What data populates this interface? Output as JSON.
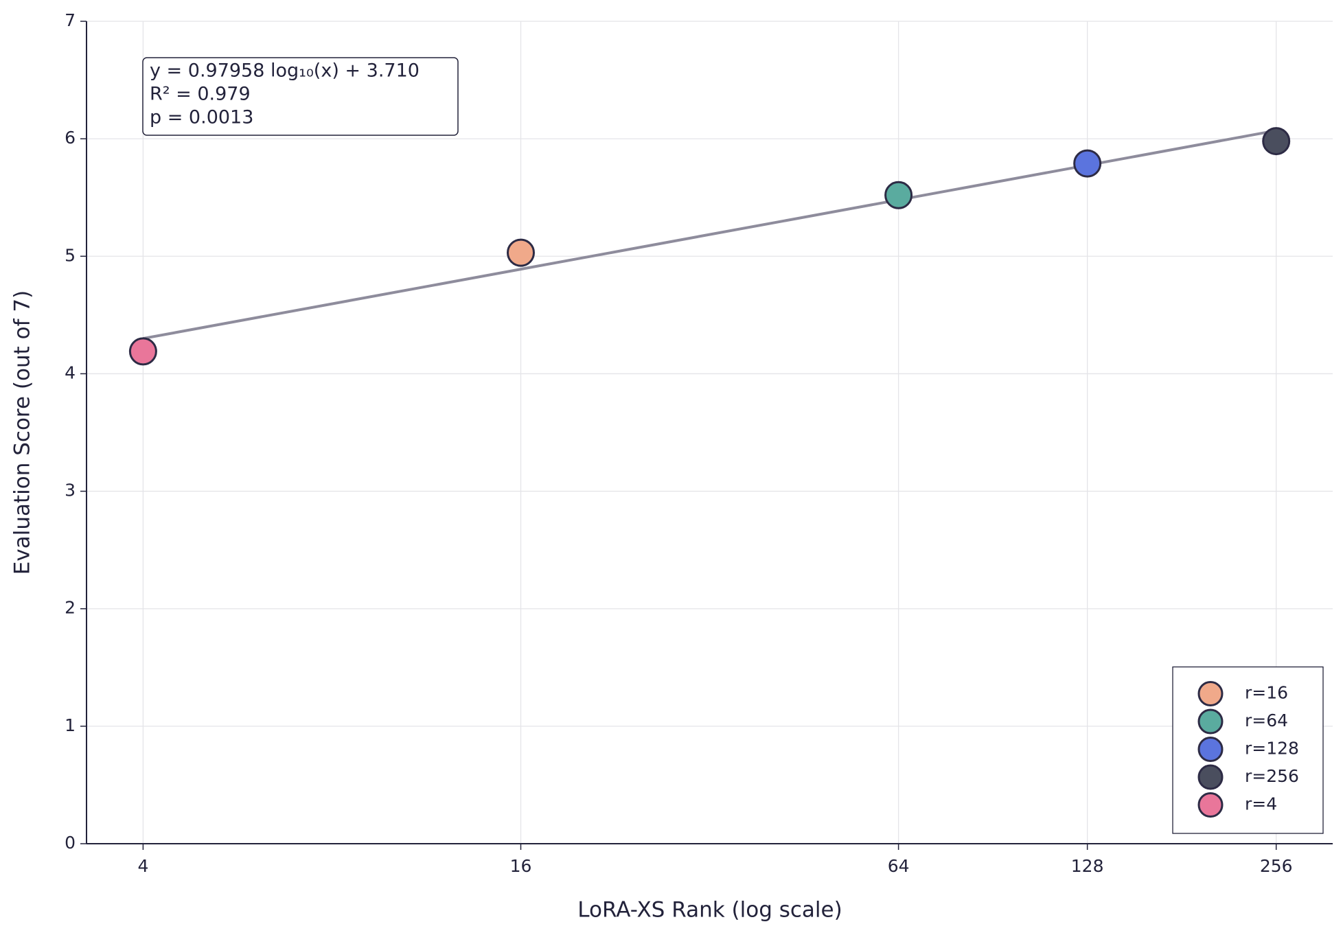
{
  "chart_data": {
    "type": "scatter",
    "xlabel": "LoRA-XS Rank (log scale)",
    "ylabel": "Evaluation Score (out of 7)",
    "x_log": true,
    "xlim": [
      3.25,
      315
    ],
    "xticks": [
      4,
      16,
      64,
      128,
      256
    ],
    "ylim": [
      0,
      7
    ],
    "yticks": [
      0,
      1,
      2,
      3,
      4,
      5,
      6,
      7
    ],
    "grid": true,
    "legend_position": "lower right",
    "edge_color": "#2d2b45",
    "annotation": [
      "y = 0.97958 log₁₀(x) + 3.710",
      "R² = 0.979",
      "p = 0.0013"
    ],
    "fit_line": {
      "color": "#8e8c9c",
      "x": [
        4,
        256
      ],
      "values": [
        4.3,
        6.07
      ]
    },
    "series": [
      {
        "name": "r=16",
        "color": "#f0a98a",
        "x": [
          16
        ],
        "values": [
          5.03
        ]
      },
      {
        "name": "r=64",
        "color": "#5aab9f",
        "x": [
          64
        ],
        "values": [
          5.52
        ]
      },
      {
        "name": "r=128",
        "color": "#5b74de",
        "x": [
          128
        ],
        "values": [
          5.79
        ]
      },
      {
        "name": "r=256",
        "color": "#4a4e5e",
        "x": [
          256
        ],
        "values": [
          5.98
        ]
      },
      {
        "name": "r=4",
        "color": "#e9769a",
        "x": [
          4
        ],
        "values": [
          4.19
        ]
      }
    ]
  }
}
